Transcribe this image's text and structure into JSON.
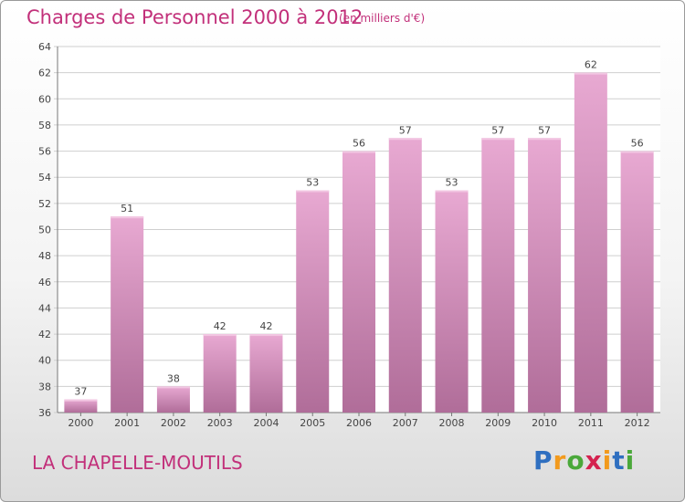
{
  "title": "Charges de Personnel 2000 à 2012",
  "subtitle": "(en milliers d'€)",
  "commune": "LA CHAPELLE-MOUTILS",
  "logo": {
    "letters": [
      "P",
      "r",
      "o",
      "x",
      "i",
      "t",
      "i"
    ],
    "colors": [
      "#2f6fc0",
      "#f29a1d",
      "#4aa83a",
      "#d4224f",
      "#f29a1d",
      "#2f6fc0",
      "#4aa83a"
    ]
  },
  "colors": {
    "bar_top": "#e8a9d2",
    "bar_bottom": "#b06d99",
    "text": "#c2307a"
  },
  "chart_data": {
    "type": "bar",
    "title": "Charges de Personnel 2000 à 2012",
    "subtitle": "(en milliers d'€)",
    "xlabel": "",
    "ylabel": "",
    "categories": [
      "2000",
      "2001",
      "2002",
      "2003",
      "2004",
      "2005",
      "2006",
      "2007",
      "2008",
      "2009",
      "2010",
      "2011",
      "2012"
    ],
    "values": [
      37,
      51,
      38,
      42,
      42,
      53,
      56,
      57,
      53,
      57,
      57,
      62,
      56
    ],
    "ylim": [
      36,
      64
    ],
    "yticks": [
      36,
      38,
      40,
      42,
      44,
      46,
      48,
      50,
      52,
      54,
      56,
      58,
      60,
      62,
      64
    ],
    "grid": true
  }
}
